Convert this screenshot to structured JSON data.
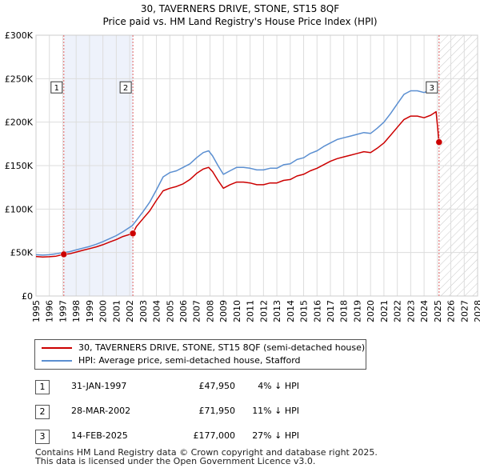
{
  "chart_data": {
    "type": "line",
    "title": "30, TAVERNERS DRIVE, STONE, ST15 8QF",
    "subtitle": "Price paid vs. HM Land Registry's House Price Index (HPI)",
    "ylim": [
      0,
      300000
    ],
    "xlim": [
      1995,
      2028
    ],
    "y_ticks": [
      0,
      50000,
      100000,
      150000,
      200000,
      250000,
      300000
    ],
    "y_tick_labels": [
      "£0",
      "£50K",
      "£100K",
      "£150K",
      "£200K",
      "£250K",
      "£300K"
    ],
    "x_ticks": [
      1995,
      1996,
      1997,
      1998,
      1999,
      2000,
      2001,
      2002,
      2003,
      2004,
      2005,
      2006,
      2007,
      2008,
      2009,
      2010,
      2011,
      2012,
      2013,
      2014,
      2015,
      2016,
      2017,
      2018,
      2019,
      2020,
      2021,
      2022,
      2023,
      2024,
      2025,
      2026,
      2027,
      2028
    ],
    "grid": true,
    "series": [
      {
        "name": "30, TAVERNERS DRIVE, STONE, ST15 8QF (semi-detached house)",
        "color": "#cc0000",
        "points": [
          [
            1995.0,
            45500
          ],
          [
            1995.5,
            44800
          ],
          [
            1996.0,
            45200
          ],
          [
            1996.5,
            45800
          ],
          [
            1997.08,
            47950
          ],
          [
            1997.5,
            48500
          ],
          [
            1998.0,
            50500
          ],
          [
            1998.5,
            52500
          ],
          [
            1999.0,
            54500
          ],
          [
            1999.5,
            56500
          ],
          [
            2000.0,
            59000
          ],
          [
            2000.5,
            62000
          ],
          [
            2001.0,
            65000
          ],
          [
            2001.5,
            68500
          ],
          [
            2002.24,
            71950
          ],
          [
            2002.5,
            80000
          ],
          [
            2003.0,
            89000
          ],
          [
            2003.5,
            98000
          ],
          [
            2004.0,
            110000
          ],
          [
            2004.5,
            121000
          ],
          [
            2005.0,
            124000
          ],
          [
            2005.5,
            126000
          ],
          [
            2006.0,
            129000
          ],
          [
            2006.5,
            134000
          ],
          [
            2007.0,
            141000
          ],
          [
            2007.5,
            146000
          ],
          [
            2007.9,
            148000
          ],
          [
            2008.2,
            143000
          ],
          [
            2008.6,
            133000
          ],
          [
            2009.0,
            124000
          ],
          [
            2009.5,
            128000
          ],
          [
            2010.0,
            131000
          ],
          [
            2010.5,
            131000
          ],
          [
            2011.0,
            130000
          ],
          [
            2011.5,
            128000
          ],
          [
            2012.0,
            128000
          ],
          [
            2012.5,
            130000
          ],
          [
            2013.0,
            130000
          ],
          [
            2013.5,
            133000
          ],
          [
            2014.0,
            134000
          ],
          [
            2014.5,
            138000
          ],
          [
            2015.0,
            140000
          ],
          [
            2015.5,
            144000
          ],
          [
            2016.0,
            147000
          ],
          [
            2016.5,
            151000
          ],
          [
            2017.0,
            155000
          ],
          [
            2017.5,
            158000
          ],
          [
            2018.0,
            160000
          ],
          [
            2018.5,
            162000
          ],
          [
            2019.0,
            164000
          ],
          [
            2019.5,
            166000
          ],
          [
            2020.0,
            165000
          ],
          [
            2020.5,
            170000
          ],
          [
            2021.0,
            176000
          ],
          [
            2021.5,
            185000
          ],
          [
            2022.0,
            194000
          ],
          [
            2022.5,
            203000
          ],
          [
            2023.0,
            207000
          ],
          [
            2023.5,
            207000
          ],
          [
            2024.0,
            205000
          ],
          [
            2024.5,
            208000
          ],
          [
            2024.9,
            212000
          ],
          [
            2025.12,
            177000
          ]
        ]
      },
      {
        "name": "HPI: Average price, semi-detached house, Stafford",
        "color": "#5b8fd1",
        "points": [
          [
            1995.0,
            47500
          ],
          [
            1995.5,
            47000
          ],
          [
            1996.0,
            47500
          ],
          [
            1996.5,
            48500
          ],
          [
            1997.0,
            50000
          ],
          [
            1997.5,
            51000
          ],
          [
            1998.0,
            53000
          ],
          [
            1998.5,
            55000
          ],
          [
            1999.0,
            57000
          ],
          [
            1999.5,
            59500
          ],
          [
            2000.0,
            62500
          ],
          [
            2000.5,
            66000
          ],
          [
            2001.0,
            69500
          ],
          [
            2001.5,
            74000
          ],
          [
            2002.2,
            81000
          ],
          [
            2002.5,
            87000
          ],
          [
            2003.0,
            97000
          ],
          [
            2003.5,
            108000
          ],
          [
            2004.0,
            122000
          ],
          [
            2004.5,
            137000
          ],
          [
            2005.0,
            142000
          ],
          [
            2005.5,
            144000
          ],
          [
            2006.0,
            148000
          ],
          [
            2006.5,
            152000
          ],
          [
            2007.0,
            159000
          ],
          [
            2007.5,
            165000
          ],
          [
            2007.9,
            167000
          ],
          [
            2008.2,
            161000
          ],
          [
            2008.6,
            150000
          ],
          [
            2009.0,
            140000
          ],
          [
            2009.5,
            144000
          ],
          [
            2010.0,
            148000
          ],
          [
            2010.5,
            148000
          ],
          [
            2011.0,
            147000
          ],
          [
            2011.5,
            145000
          ],
          [
            2012.0,
            145000
          ],
          [
            2012.5,
            147000
          ],
          [
            2013.0,
            147000
          ],
          [
            2013.5,
            151000
          ],
          [
            2014.0,
            152000
          ],
          [
            2014.5,
            157000
          ],
          [
            2015.0,
            159000
          ],
          [
            2015.5,
            164000
          ],
          [
            2016.0,
            167000
          ],
          [
            2016.5,
            172000
          ],
          [
            2017.0,
            176000
          ],
          [
            2017.5,
            180000
          ],
          [
            2018.0,
            182000
          ],
          [
            2018.5,
            184000
          ],
          [
            2019.0,
            186000
          ],
          [
            2019.5,
            188000
          ],
          [
            2020.0,
            187000
          ],
          [
            2020.5,
            193000
          ],
          [
            2021.0,
            200000
          ],
          [
            2021.5,
            210000
          ],
          [
            2022.0,
            221000
          ],
          [
            2022.5,
            232000
          ],
          [
            2023.0,
            236000
          ],
          [
            2023.5,
            236000
          ],
          [
            2024.0,
            234000
          ],
          [
            2024.5,
            237000
          ],
          [
            2024.9,
            240000
          ]
        ]
      }
    ],
    "sales": [
      {
        "label": "1",
        "x": 1997.08,
        "price": 47950,
        "date": "31-JAN-1997",
        "price_text": "£47,950",
        "hpi_text": "4% ↓ HPI"
      },
      {
        "label": "2",
        "x": 2002.24,
        "price": 71950,
        "date": "28-MAR-2002",
        "price_text": "£71,950",
        "hpi_text": "11% ↓ HPI"
      },
      {
        "label": "3",
        "x": 2025.12,
        "price": 177000,
        "date": "14-FEB-2025",
        "price_text": "£177,000",
        "hpi_text": "27% ↓ HPI"
      }
    ],
    "shaded_band": [
      1997.08,
      2002.24
    ],
    "hatched_from": 2025.12,
    "marker_label_y": 240000
  },
  "legend": {
    "series1_label": "30, TAVERNERS DRIVE, STONE, ST15 8QF (semi-detached house)",
    "series2_label": "HPI: Average price, semi-detached house, Stafford"
  },
  "footer": {
    "line1": "Contains HM Land Registry data © Crown copyright and database right 2025.",
    "line2": "This data is licensed under the Open Government Licence v3.0."
  },
  "colors": {
    "price_line": "#cc0000",
    "hpi_line": "#5b8fd1",
    "band_fill": "#eef2fb",
    "grid": "#dddddd"
  }
}
